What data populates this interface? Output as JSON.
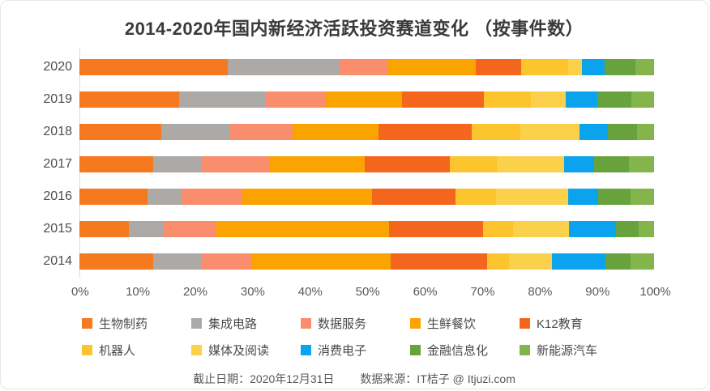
{
  "title": "2014-2020年国内新经济活跃投资赛道变化 （按事件数）",
  "chart_data": {
    "type": "bar",
    "orientation": "horizontal",
    "stacked": true,
    "unit": "percent",
    "grid": false,
    "legend_position": "bottom",
    "categories": [
      "2020",
      "2019",
      "2018",
      "2017",
      "2016",
      "2015",
      "2014"
    ],
    "series": [
      {
        "name": "生物制药",
        "color": "#F5791F",
        "values": [
          25.8,
          17.3,
          14.2,
          12.9,
          11.9,
          8.6,
          12.9
        ]
      },
      {
        "name": "集成电路",
        "color": "#ACA9A7",
        "values": [
          19.5,
          15.0,
          12.1,
          8.3,
          5.9,
          5.9,
          8.2
        ]
      },
      {
        "name": "数据服务",
        "color": "#FA8D6D",
        "values": [
          8.5,
          10.5,
          10.8,
          11.8,
          10.6,
          9.4,
          8.9
        ]
      },
      {
        "name": "生鲜餐饮",
        "color": "#FBA301",
        "values": [
          15.2,
          13.4,
          14.9,
          16.6,
          22.5,
          30.0,
          24.2
        ]
      },
      {
        "name": "K12教育",
        "color": "#F4661E",
        "values": [
          7.9,
          14.2,
          16.2,
          14.8,
          14.6,
          16.4,
          16.8
        ]
      },
      {
        "name": "机器人",
        "color": "#FCC42D",
        "values": [
          8.2,
          8.2,
          8.5,
          8.3,
          7.0,
          5.1,
          3.8
        ]
      },
      {
        "name": "媒体及阅读",
        "color": "#FBD04A",
        "values": [
          2.3,
          6.1,
          10.3,
          11.6,
          12.5,
          9.8,
          7.4
        ]
      },
      {
        "name": "消费电子",
        "color": "#0BA3EE",
        "values": [
          4.0,
          5.4,
          4.9,
          5.3,
          5.3,
          8.2,
          9.4
        ]
      },
      {
        "name": "金融信息化",
        "color": "#67A23C",
        "values": [
          5.3,
          5.9,
          5.1,
          6.1,
          5.6,
          3.9,
          4.3
        ]
      },
      {
        "name": "新能源汽车",
        "color": "#84B54D",
        "values": [
          3.3,
          4.0,
          3.0,
          4.3,
          4.1,
          2.7,
          4.1
        ]
      }
    ],
    "x_ticks": [
      "0%",
      "10%",
      "20%",
      "30%",
      "40%",
      "50%",
      "60%",
      "70%",
      "80%",
      "90%",
      "100%"
    ],
    "xlim": [
      0,
      100
    ]
  },
  "footer": {
    "deadline": "截止日期：2020年12月31日",
    "source": "数据来源：IT桔子 @ Itjuzi.com"
  }
}
